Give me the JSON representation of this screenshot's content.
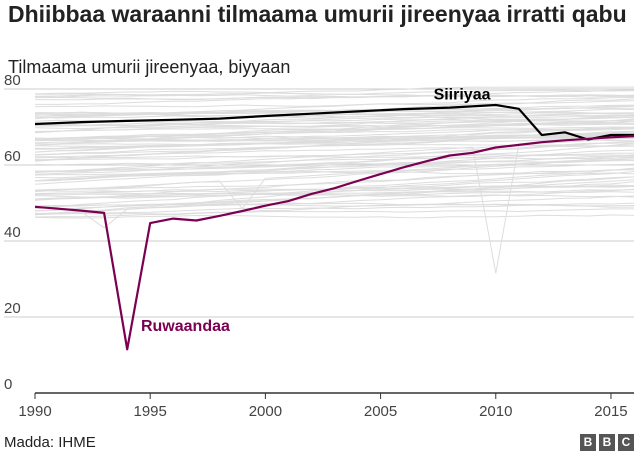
{
  "chart_data": {
    "type": "line",
    "title": "Dhiibbaa waraanni tilmaama umurii jireenyaa irratti qabu",
    "subtitle": "Tilmaama umurii jireenyaa, biyyaan",
    "xlabel": "",
    "ylabel": "",
    "xlim": [
      1990,
      2016
    ],
    "ylim": [
      0,
      80
    ],
    "x_ticks": [
      1990,
      1995,
      2000,
      2005,
      2010,
      2015
    ],
    "y_ticks": [
      0,
      20,
      40,
      60,
      80
    ],
    "grid": "horizontal",
    "background_series_color": "#dddddd",
    "series": [
      {
        "name": "Siiriyaa",
        "color": "#000000",
        "x": [
          1990,
          1992,
          1994,
          1996,
          1998,
          2000,
          2002,
          2004,
          2006,
          2008,
          2010,
          2011,
          2012,
          2013,
          2014,
          2015,
          2016
        ],
        "values": [
          70.8,
          71.3,
          71.6,
          71.9,
          72.2,
          72.9,
          73.5,
          74.1,
          74.7,
          75.1,
          75.8,
          74.8,
          67.9,
          68.6,
          66.7,
          67.9,
          67.9
        ]
      },
      {
        "name": "Ruwaandaa",
        "color": "#7b0051",
        "x": [
          1990,
          1991,
          1992,
          1993,
          1994,
          1995,
          1996,
          1997,
          1998,
          1999,
          2000,
          2001,
          2002,
          2003,
          2004,
          2005,
          2006,
          2007,
          2008,
          2009,
          2010,
          2011,
          2012,
          2013,
          2014,
          2015,
          2016
        ],
        "values": [
          49.0,
          48.5,
          48.0,
          47.4,
          11.5,
          44.7,
          45.9,
          45.4,
          46.6,
          47.9,
          49.3,
          50.5,
          52.4,
          53.9,
          55.8,
          57.6,
          59.4,
          61.0,
          62.5,
          63.2,
          64.6,
          65.3,
          66.0,
          66.5,
          66.9,
          67.3,
          67.6
        ]
      }
    ]
  },
  "footer": {
    "source": "Madda: IHME",
    "logo_letters": [
      "B",
      "B",
      "C"
    ]
  }
}
